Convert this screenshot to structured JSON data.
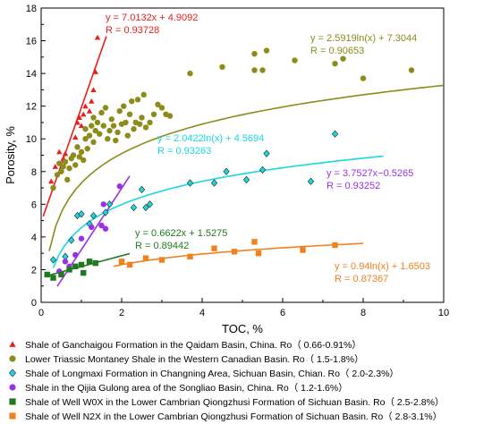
{
  "chart_data": {
    "type": "scatter",
    "xlabel": "TOC, %",
    "ylabel": "Porosity, %",
    "xlim": [
      0,
      10
    ],
    "ylim": [
      0,
      18
    ],
    "x_ticks": [
      0,
      2,
      4,
      6,
      8,
      10
    ],
    "y_ticks": [
      0,
      2,
      4,
      6,
      8,
      10,
      12,
      14,
      16,
      18
    ],
    "grid": false,
    "legend_position": "bottom",
    "series": [
      {
        "name": "Shale of Ganchaigou Formation in the Qaidam Basin, China. Ro（ 0.66-0.91%）",
        "color": "#e8201a",
        "marker": "triangle",
        "points": [
          [
            0.25,
            7.4
          ],
          [
            0.35,
            8.3
          ],
          [
            0.45,
            9.2
          ],
          [
            0.55,
            8.8
          ],
          [
            0.6,
            9.1
          ],
          [
            0.85,
            10.1
          ],
          [
            0.9,
            11.0
          ],
          [
            0.95,
            11.3
          ],
          [
            1.0,
            10.8
          ],
          [
            1.05,
            11.5
          ],
          [
            1.1,
            12.0
          ],
          [
            1.2,
            11.7
          ],
          [
            1.25,
            12.3
          ],
          [
            1.3,
            13.0
          ],
          [
            1.35,
            14.1
          ],
          [
            1.4,
            16.2
          ]
        ],
        "fit": {
          "kind": "linear",
          "a": 7.0132,
          "b": 4.9092,
          "x_range": [
            0.05,
            1.62
          ]
        },
        "equation": "y = 7.0132x + 4.9092",
        "r": "R = 0.93728"
      },
      {
        "name": "Lower Triassic Montaney Shale in the Western Canadian Basin. Ro（ 1.5-1.8%）",
        "color": "#8b8c1a",
        "marker": "circle",
        "points": [
          [
            0.3,
            7.0
          ],
          [
            0.4,
            7.8
          ],
          [
            0.45,
            8.5
          ],
          [
            0.5,
            8.0
          ],
          [
            0.55,
            8.3
          ],
          [
            0.6,
            8.6
          ],
          [
            0.65,
            7.5
          ],
          [
            0.7,
            8.2
          ],
          [
            0.75,
            8.8
          ],
          [
            0.8,
            9.0
          ],
          [
            0.85,
            8.4
          ],
          [
            0.9,
            9.5
          ],
          [
            0.95,
            8.9
          ],
          [
            1.0,
            9.2
          ],
          [
            1.05,
            8.7
          ],
          [
            1.1,
            10.0
          ],
          [
            1.1,
            10.6
          ],
          [
            1.15,
            9.4
          ],
          [
            1.2,
            10.2
          ],
          [
            1.25,
            10.8
          ],
          [
            1.3,
            11.3
          ],
          [
            1.3,
            9.8
          ],
          [
            1.35,
            10.5
          ],
          [
            1.4,
            11.0
          ],
          [
            1.45,
            10.3
          ],
          [
            1.5,
            11.6
          ],
          [
            1.55,
            10.8
          ],
          [
            1.6,
            11.9
          ],
          [
            1.65,
            10.0
          ],
          [
            1.7,
            10.5
          ],
          [
            1.75,
            11.2
          ],
          [
            1.8,
            10.8
          ],
          [
            1.85,
            9.9
          ],
          [
            1.9,
            10.4
          ],
          [
            1.95,
            11.7
          ],
          [
            2.0,
            10.9
          ],
          [
            2.05,
            12.0
          ],
          [
            2.1,
            11.0
          ],
          [
            2.15,
            10.2
          ],
          [
            2.2,
            11.5
          ],
          [
            2.25,
            12.3
          ],
          [
            2.3,
            10.6
          ],
          [
            2.35,
            11.0
          ],
          [
            2.4,
            12.4
          ],
          [
            2.45,
            10.9
          ],
          [
            2.5,
            11.3
          ],
          [
            2.55,
            12.7
          ],
          [
            2.6,
            10.7
          ],
          [
            2.7,
            11.0
          ],
          [
            2.8,
            11.5
          ],
          [
            2.9,
            12.1
          ],
          [
            3.0,
            11.9
          ],
          [
            3.1,
            11.5
          ],
          [
            3.2,
            11.4
          ],
          [
            3.7,
            14.0
          ],
          [
            4.5,
            14.4
          ],
          [
            5.3,
            15.2
          ],
          [
            5.3,
            14.2
          ],
          [
            5.5,
            14.2
          ],
          [
            5.6,
            15.4
          ],
          [
            6.3,
            14.8
          ],
          [
            7.3,
            14.6
          ],
          [
            7.5,
            14.9
          ],
          [
            8.0,
            13.7
          ],
          [
            9.2,
            14.2
          ]
        ],
        "fit": {
          "kind": "log",
          "a": 2.5919,
          "b": 7.3044,
          "x_range": [
            0.2,
            10
          ]
        },
        "equation": "y = 2.5919ln(x) + 7.3044",
        "r": "R = 0.90653"
      },
      {
        "name": "Shale of Longmaxi Formation in Changning Area, Sichuan Basin, Chian. Ro（ 2.0-2.3%）",
        "color": "#19d8e0",
        "marker": "diamond",
        "points": [
          [
            0.3,
            2.6
          ],
          [
            0.6,
            2.8
          ],
          [
            0.75,
            3.8
          ],
          [
            0.9,
            5.3
          ],
          [
            1.0,
            5.4
          ],
          [
            1.2,
            4.8
          ],
          [
            1.3,
            5.3
          ],
          [
            1.6,
            5.5
          ],
          [
            1.7,
            6.0
          ],
          [
            2.3,
            5.8
          ],
          [
            2.5,
            6.9
          ],
          [
            2.6,
            5.8
          ],
          [
            2.7,
            6.0
          ],
          [
            3.7,
            7.3
          ],
          [
            4.3,
            7.3
          ],
          [
            4.6,
            8.0
          ],
          [
            5.1,
            7.5
          ],
          [
            5.5,
            8.1
          ],
          [
            5.6,
            9.1
          ],
          [
            6.7,
            7.4
          ],
          [
            7.3,
            10.3
          ]
        ],
        "fit": {
          "kind": "log",
          "a": 2.0422,
          "b": 4.5694,
          "x_range": [
            0.3,
            8.5
          ]
        },
        "equation": "y = 2.0422ln(x) + 4.5694",
        "r": "R = 0.93263"
      },
      {
        "name": "Shale in the Qijia Gulong area of the Songliao Basin, China. Ro（ 1.2-1.6%）",
        "color": "#9b30e8",
        "marker": "circle",
        "points": [
          [
            0.45,
            1.9
          ],
          [
            0.6,
            2.5
          ],
          [
            0.7,
            2.2
          ],
          [
            0.85,
            2.9
          ],
          [
            1.0,
            3.9
          ],
          [
            1.25,
            4.6
          ],
          [
            1.5,
            4.7
          ],
          [
            1.6,
            4.5
          ],
          [
            1.55,
            6.0
          ],
          [
            1.95,
            7.1
          ]
        ],
        "fit": {
          "kind": "linear",
          "a": 3.7527,
          "b": -0.5265,
          "x_range": [
            0.4,
            2.2
          ]
        },
        "equation": "y = 3.7527x−0.5265",
        "r": "R = 0.93252"
      },
      {
        "name": "Shale of Well W0X in the Lower Cambrian Qiongzhusi Formation of Sichuan Basin. Ro（ 2.5-2.8%）",
        "color": "#1f7a1f",
        "marker": "square",
        "points": [
          [
            0.15,
            1.7
          ],
          [
            0.3,
            1.5
          ],
          [
            0.5,
            1.7
          ],
          [
            0.7,
            2.0
          ],
          [
            0.85,
            2.2
          ],
          [
            1.0,
            2.3
          ],
          [
            1.05,
            1.8
          ],
          [
            1.2,
            2.5
          ],
          [
            1.35,
            2.4
          ]
        ],
        "fit": {
          "kind": "linear",
          "a": 0.6622,
          "b": 1.5275,
          "x_range": [
            0.1,
            2.2
          ]
        },
        "equation": "y = 0.6622x + 1.5275",
        "r": "R = 0.89442"
      },
      {
        "name": "Shale of Well N2X in the Lower Cambrian Qiongzhusi Formation of Sichuan Basin. Ro（ 2.8-3.1%）",
        "color": "#f0821e",
        "marker": "square",
        "points": [
          [
            2.0,
            2.5
          ],
          [
            2.2,
            2.3
          ],
          [
            2.6,
            2.7
          ],
          [
            3.0,
            2.6
          ],
          [
            3.7,
            2.8
          ],
          [
            4.3,
            3.3
          ],
          [
            4.8,
            3.1
          ],
          [
            5.3,
            3.7
          ],
          [
            5.4,
            3.0
          ],
          [
            6.5,
            3.2
          ],
          [
            7.3,
            3.5
          ]
        ],
        "fit": {
          "kind": "log",
          "a": 0.94,
          "b": 1.6503,
          "x_range": [
            1.8,
            8.0
          ]
        },
        "equation": "y = 0.94ln(x) + 1.6503",
        "r": "R = 0.87367"
      }
    ]
  }
}
